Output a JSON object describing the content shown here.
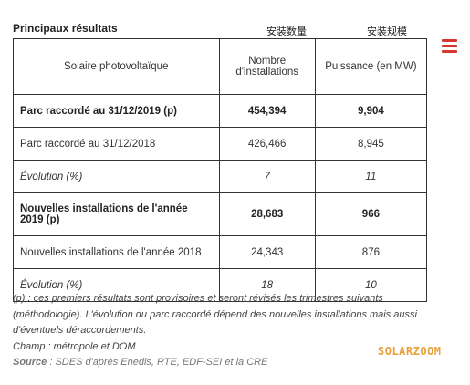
{
  "header": {
    "title": "Principaux résultats",
    "cn_count": "安装数量",
    "cn_capacity": "安装规模"
  },
  "table": {
    "col1": "Solaire photovoltaïque",
    "col2": "Nombre d'installations",
    "col3": "Puissance (en MW)",
    "rows": [
      {
        "label": "Parc raccordé au 31/12/2019 (p)",
        "count": "454,394",
        "power": "9,904"
      },
      {
        "label": "Parc raccordé au 31/12/2018",
        "count": "426,466",
        "power": "8,945"
      },
      {
        "label": "Évolution (%)",
        "count": "7",
        "power": "11"
      },
      {
        "label": "Nouvelles installations de l'année 2019 (p)",
        "count": "28,683",
        "power": "966"
      },
      {
        "label": "Nouvelles installations de l'année 2018",
        "count": "24,343",
        "power": "876"
      },
      {
        "label": "Évolution (%)",
        "count": "18",
        "power": "10"
      }
    ]
  },
  "notes": {
    "line1": "(p) : ces premiers résultats sont provisoires et seront révisés les trimestres suivants (méthodologie). L'évolution du parc raccordé dépend des nouvelles installations mais aussi d'éventuels déraccordements.",
    "line2": "Champ : métropole et DOM",
    "source_label": "Source",
    "source_text": " : SDES d'après Enedis, RTE, EDF-SEI et la CRE"
  },
  "watermark": "SOLARZOOM",
  "accent_color": "#d9352f",
  "icons": {
    "menu": "hamburger-menu-icon"
  }
}
